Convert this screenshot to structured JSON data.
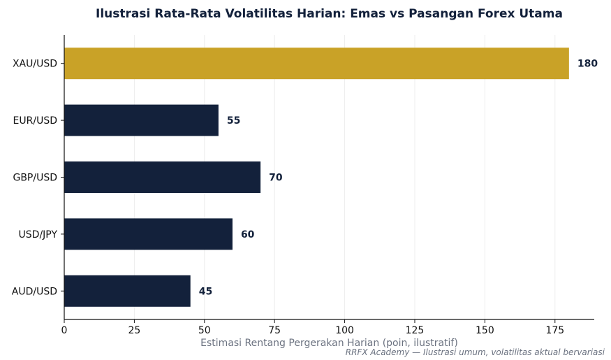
{
  "chart_data": {
    "type": "bar",
    "orientation": "horizontal",
    "title": "Ilustrasi Rata-Rata Volatilitas Harian: Emas vs Pasangan Forex Utama",
    "xlabel": "Estimasi Rentang Pergerakan Harian (poin, ilustratif)",
    "ylabel": "",
    "categories": [
      "XAU/USD",
      "EUR/USD",
      "GBP/USD",
      "USD/JPY",
      "AUD/USD"
    ],
    "values": [
      180,
      55,
      70,
      60,
      45
    ],
    "value_labels": [
      "180",
      "55",
      "70",
      "60",
      "45"
    ],
    "bar_colors": [
      "#c9a227",
      "#13213b",
      "#13213b",
      "#13213b",
      "#13213b"
    ],
    "xlim": [
      0,
      189
    ],
    "xticks": [
      0,
      25,
      50,
      75,
      100,
      125,
      150,
      175
    ],
    "xtick_labels": [
      "0",
      "25",
      "50",
      "75",
      "100",
      "125",
      "150",
      "175"
    ],
    "grid": "vertical",
    "legend": "none"
  },
  "footnote": "RRFX Academy — Ilustrasi umum, volatilitas aktual bervariasi",
  "colors": {
    "gold": "#c9a227",
    "navy": "#13213b",
    "grid": "#ececec",
    "muted_text": "#6b7280"
  }
}
